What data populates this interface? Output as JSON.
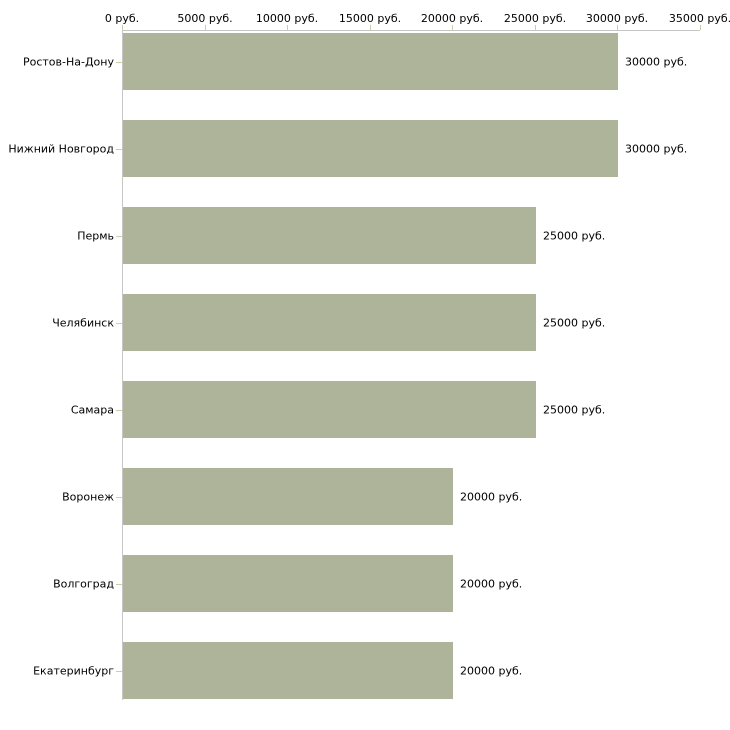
{
  "chart_data": {
    "type": "bar",
    "orientation": "horizontal",
    "title": "",
    "categories": [
      "Ростов-На-Дону",
      "Нижний Новгород",
      "Пермь",
      "Челябинск",
      "Самара",
      "Воронеж",
      "Волгоград",
      "Екатеринбург"
    ],
    "values": [
      30000,
      30000,
      25000,
      25000,
      25000,
      20000,
      20000,
      20000
    ],
    "bar_labels": [
      "30000 руб.",
      "30000 руб.",
      "25000 руб.",
      "25000 руб.",
      "25000 руб.",
      "20000 руб.",
      "20000 руб.",
      "20000 руб."
    ],
    "x_axis": {
      "position": "top",
      "range": [
        0,
        35000
      ],
      "ticks": [
        0,
        5000,
        10000,
        15000,
        20000,
        25000,
        30000,
        35000
      ],
      "tick_labels": [
        "0 руб.",
        "5000 руб.",
        "10000 руб.",
        "15000 руб.",
        "20000 руб.",
        "25000 руб.",
        "30000 руб.",
        "35000 руб."
      ]
    },
    "legend": false,
    "grid": false,
    "colors": {
      "bar": "#aeb49a",
      "axis_line": "#c6c6c6",
      "tick": "#cdcdaa",
      "text": "#000000",
      "background": "#ffffff"
    }
  }
}
